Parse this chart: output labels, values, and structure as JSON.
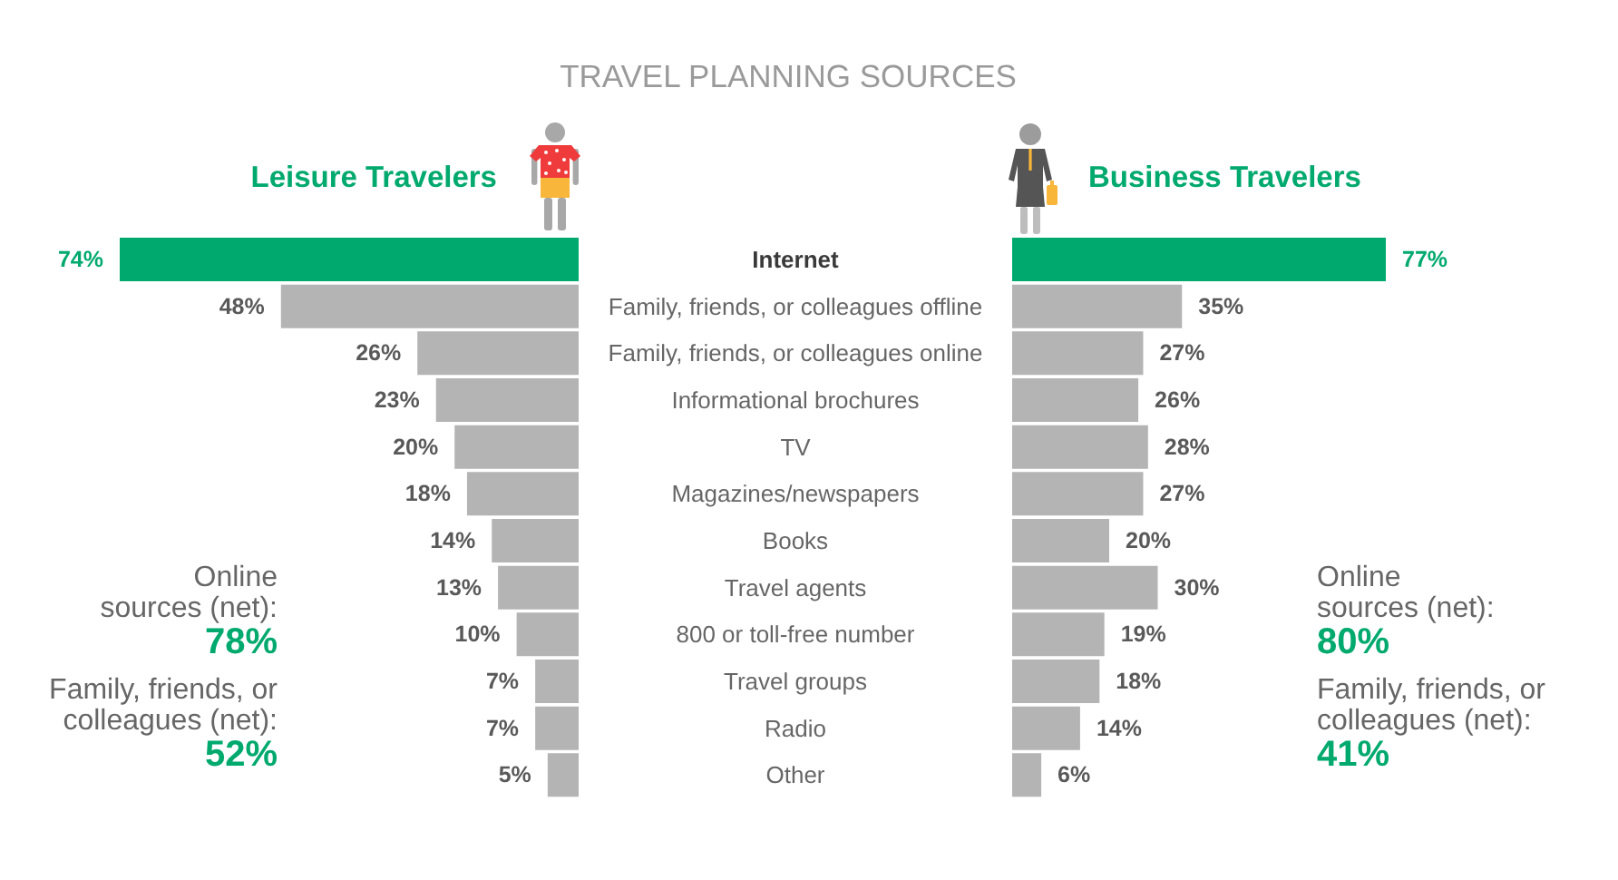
{
  "chart_data": [
    {
      "type": "bar",
      "orientation": "horizontal",
      "title": "TRAVEL PLANNING SOURCES",
      "subtitle": "Leisure Travelers",
      "categories": [
        "Internet",
        "Family, friends, or colleagues offline",
        "Family, friends, or colleagues online",
        "Informational brochures",
        "TV",
        "Magazines/newspapers",
        "Books",
        "Travel agents",
        "800 or toll-free number",
        "Travel groups",
        "Radio",
        "Other"
      ],
      "values": [
        74,
        48,
        26,
        23,
        20,
        18,
        14,
        13,
        10,
        7,
        7,
        5
      ],
      "value_labels": [
        "74%",
        "48%",
        "26%",
        "23%",
        "20%",
        "18%",
        "14%",
        "13%",
        "10%",
        "7%",
        "7%",
        "5%"
      ],
      "colors": [
        "#00a96e",
        "#b4b4b4",
        "#b4b4b4",
        "#b4b4b4",
        "#b4b4b4",
        "#b4b4b4",
        "#b4b4b4",
        "#b4b4b4",
        "#b4b4b4",
        "#b4b4b4",
        "#b4b4b4",
        "#b4b4b4"
      ],
      "xlim": [
        74,
        0
      ],
      "tick_labels": "y",
      "annotations": [
        "Online\nsources (net):\n78%",
        "Family, friends, or\ncolleagues (net):\n52%"
      ]
    },
    {
      "type": "bar",
      "orientation": "horizontal",
      "subtitle": "Business Travelers",
      "categories": [
        "Internet",
        "Family, friends, or colleagues offline",
        "Family, friends, or colleagues online",
        "Informational brochures",
        "TV",
        "Magazines/newspapers",
        "Books",
        "Travel agents",
        "800 or toll-free number",
        "Travel groups",
        "Radio",
        "Other"
      ],
      "values": [
        77,
        35,
        27,
        26,
        28,
        27,
        20,
        30,
        19,
        18,
        14,
        6
      ],
      "value_labels": [
        "77%",
        "35%",
        "27%",
        "26%",
        "28%",
        "27%",
        "20%",
        "30%",
        "19%",
        "18%",
        "14%",
        "6%"
      ],
      "colors": [
        "#00a96e",
        "#b4b4b4",
        "#b4b4b4",
        "#b4b4b4",
        "#b4b4b4",
        "#b4b4b4",
        "#b4b4b4",
        "#b4b4b4",
        "#b4b4b4",
        "#b4b4b4",
        "#b4b4b4",
        "#b4b4b4"
      ],
      "xlim": [
        0,
        77
      ],
      "tick_labels": false,
      "annotations": [
        "Online\nsources (net):\n80%",
        "Family, friends, or\ncolleagues (net):\n41%"
      ]
    }
  ]
}
